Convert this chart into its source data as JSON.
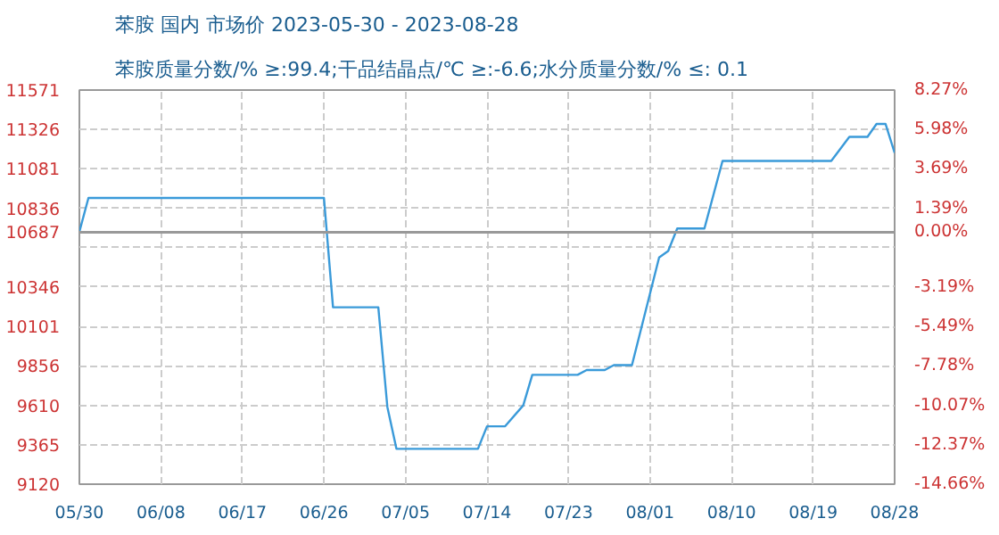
{
  "chart_data": {
    "type": "line",
    "title": "苯胺 国内 市场价 2023-05-30 - 2023-08-28",
    "subtitle": "苯胺质量分数/% ≥:99.4;干品结晶点/℃   ≥:-6.6;水分质量分数/%  ≤: 0.1",
    "x": [
      "2023-05-30",
      "2023-05-31",
      "2023-06-26",
      "2023-06-27",
      "2023-07-02",
      "2023-07-03",
      "2023-07-04",
      "2023-07-13",
      "2023-07-14",
      "2023-07-16",
      "2023-07-18",
      "2023-07-19",
      "2023-07-24",
      "2023-07-25",
      "2023-07-27",
      "2023-07-28",
      "2023-07-30",
      "2023-08-02",
      "2023-08-03",
      "2023-08-04",
      "2023-08-07",
      "2023-08-09",
      "2023-08-21",
      "2023-08-23",
      "2023-08-25",
      "2023-08-26",
      "2023-08-27",
      "2023-08-28"
    ],
    "series": [
      {
        "color": "#3a9ad9",
        "values": [
          10690,
          10900,
          10900,
          10220,
          10220,
          9600,
          9340,
          9340,
          9480,
          9480,
          9610,
          9800,
          9800,
          9830,
          9830,
          9860,
          9860,
          10530,
          10570,
          10710,
          10710,
          11130,
          11130,
          11280,
          11280,
          11360,
          11360,
          11180
        ]
      }
    ],
    "xlim": [
      "2023-05-30",
      "2023-08-28"
    ],
    "xticks": [
      {
        "value": "2023-05-30",
        "label": "05/30"
      },
      {
        "value": "2023-06-08",
        "label": "06/08"
      },
      {
        "value": "2023-06-17",
        "label": "06/17"
      },
      {
        "value": "2023-06-26",
        "label": "06/26"
      },
      {
        "value": "2023-07-05",
        "label": "07/05"
      },
      {
        "value": "2023-07-14",
        "label": "07/14"
      },
      {
        "value": "2023-07-23",
        "label": "07/23"
      },
      {
        "value": "2023-08-01",
        "label": "08/01"
      },
      {
        "value": "2023-08-10",
        "label": "08/10"
      },
      {
        "value": "2023-08-19",
        "label": "08/19"
      },
      {
        "value": "2023-08-28",
        "label": "08/28"
      }
    ],
    "ylim": [
      9120,
      11571
    ],
    "yticks": [
      9120,
      9365,
      9610,
      9856,
      10101,
      10346,
      {
        "value": 10591,
        "label": null
      },
      10687,
      10836,
      11081,
      11326,
      11571
    ],
    "y2lim": [
      -14.66,
      8.27
    ],
    "y2ticks": [
      {
        "value": -14.66,
        "label": "-14.66%"
      },
      {
        "value": -12.37,
        "label": "-12.37%"
      },
      {
        "value": -10.07,
        "label": "-10.07%"
      },
      {
        "value": -7.78,
        "label": "-7.78%"
      },
      {
        "value": -5.49,
        "label": "-5.49%"
      },
      {
        "value": -3.19,
        "label": "-3.19%"
      },
      {
        "value": 0,
        "label": "0.00%"
      },
      {
        "value": 1.39,
        "label": "1.39%"
      },
      {
        "value": 3.69,
        "label": "3.69%"
      },
      {
        "value": 5.98,
        "label": "5.98%"
      },
      {
        "value": 8.27,
        "label": "8.27%"
      }
    ],
    "ref_lines": [
      {
        "axis": "y",
        "value": 10687,
        "color": "#999999",
        "line_style": "solid"
      }
    ],
    "grid": true,
    "marker": "none",
    "line_style": "solid"
  }
}
